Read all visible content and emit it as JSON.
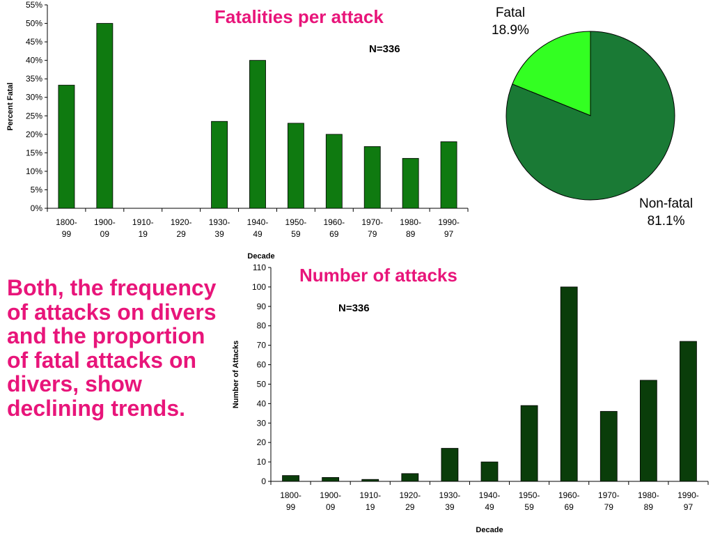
{
  "charts": {
    "fatal_bar": {
      "title": "Fatalities per attack",
      "note": "N=336",
      "ylabel": "Percent Fatal",
      "xlabel": "Decade"
    },
    "pie": {
      "fatal_label": "Fatal",
      "fatal_pct": "18.9%",
      "nonfatal_label": "Non-fatal",
      "nonfatal_pct": "81.1%"
    },
    "attacks_bar": {
      "title": "Number of attacks",
      "note": "N=336",
      "ylabel": "Number of Attacks",
      "xlabel": "Decade"
    }
  },
  "caption": "Both, the frequency of attacks on divers and the proportion of fatal attacks on divers, show declining trends.",
  "colors": {
    "title_pink": "#e8157a",
    "bar_green": "#0f7a10",
    "bar_dark_green": "#0a3d0a",
    "pie_dark": "#1a7a35",
    "pie_light": "#33ff22"
  },
  "chart_data": [
    {
      "type": "bar",
      "title": "Fatalities per attack",
      "categories": [
        "1800-99",
        "1900-09",
        "1910-19",
        "1920-29",
        "1930-39",
        "1940-49",
        "1950-59",
        "1960-69",
        "1970-79",
        "1980-89",
        "1990-97"
      ],
      "tick_lines": [
        [
          "1800-",
          "99"
        ],
        [
          "1900-",
          "09"
        ],
        [
          "1910-",
          "19"
        ],
        [
          "1920-",
          "29"
        ],
        [
          "1930-",
          "39"
        ],
        [
          "1940-",
          "49"
        ],
        [
          "1950-",
          "59"
        ],
        [
          "1960-",
          "69"
        ],
        [
          "1970-",
          "79"
        ],
        [
          "1980-",
          "89"
        ],
        [
          "1990-",
          "97"
        ]
      ],
      "values": [
        33.3,
        50,
        0,
        0,
        23.5,
        40,
        23,
        20,
        16.7,
        13.5,
        18
      ],
      "ylim": [
        0,
        55
      ],
      "yticks": [
        "0%",
        "5%",
        "10%",
        "15%",
        "20%",
        "25%",
        "30%",
        "35%",
        "40%",
        "45%",
        "50%",
        "55%"
      ],
      "xlabel": "Decade",
      "ylabel": "Percent Fatal",
      "grid": false
    },
    {
      "type": "pie",
      "labels": [
        "Fatal",
        "Non-fatal"
      ],
      "values": [
        18.9,
        81.1
      ]
    },
    {
      "type": "bar",
      "title": "Number of attacks",
      "categories": [
        "1800-99",
        "1900-09",
        "1910-19",
        "1920-29",
        "1930-39",
        "1940-49",
        "1950-59",
        "1960-69",
        "1970-79",
        "1980-89",
        "1990-97"
      ],
      "tick_lines": [
        [
          "1800-",
          "99"
        ],
        [
          "1900-",
          "09"
        ],
        [
          "1910-",
          "19"
        ],
        [
          "1920-",
          "29"
        ],
        [
          "1930-",
          "39"
        ],
        [
          "1940-",
          "49"
        ],
        [
          "1950-",
          "59"
        ],
        [
          "1960-",
          "69"
        ],
        [
          "1970-",
          "79"
        ],
        [
          "1980-",
          "89"
        ],
        [
          "1990-",
          "97"
        ]
      ],
      "values": [
        3,
        2,
        1,
        4,
        17,
        10,
        39,
        100,
        36,
        52,
        72
      ],
      "ylim": [
        0,
        110
      ],
      "yticks": [
        "0",
        "10",
        "20",
        "30",
        "40",
        "50",
        "60",
        "70",
        "80",
        "90",
        "100",
        "110"
      ],
      "xlabel": "Decade",
      "ylabel": "Number of Attacks",
      "grid": false
    }
  ]
}
